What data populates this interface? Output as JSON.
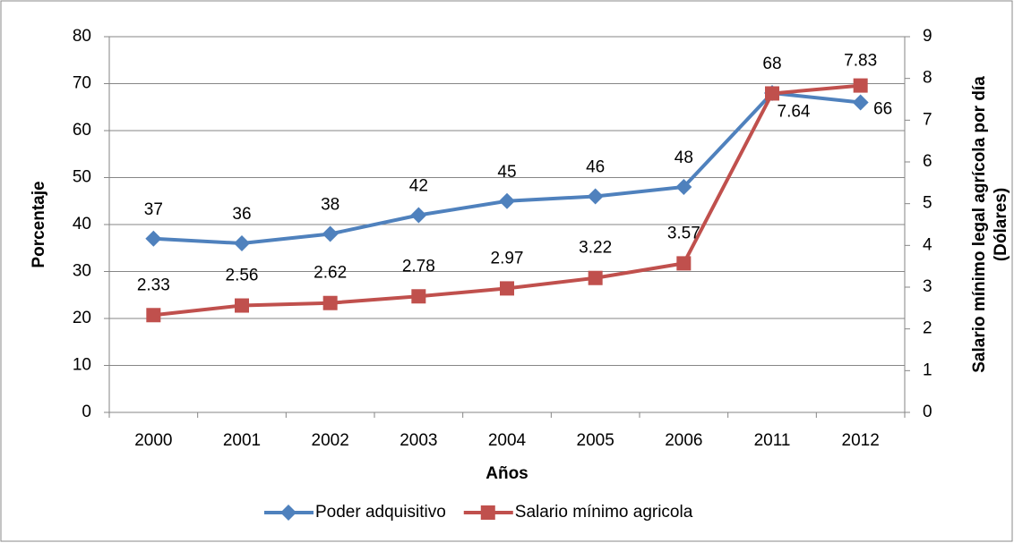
{
  "chart_data": {
    "type": "line",
    "categories": [
      "2000",
      "2001",
      "2002",
      "2003",
      "2004",
      "2005",
      "2006",
      "2011",
      "2012"
    ],
    "xlabel": "Años",
    "ylabel": "Porcentaje",
    "y2label": [
      "Salario mínimo legal agrícola por día",
      "(Dólares)"
    ],
    "ylim": [
      0,
      80
    ],
    "yticks": [
      0,
      10,
      20,
      30,
      40,
      50,
      60,
      70,
      80
    ],
    "y2lim": [
      0,
      9
    ],
    "y2ticks": [
      0,
      1,
      2,
      3,
      4,
      5,
      6,
      7,
      8,
      9
    ],
    "grid": true,
    "legend": "bottom",
    "series": [
      {
        "name": "Poder adquisitivo",
        "color": "#4f81bd",
        "values": [
          37,
          36,
          38,
          42,
          45,
          46,
          48,
          68,
          66
        ]
      },
      {
        "name": "Salario mínimo agricola",
        "color": "#c0504d",
        "axis": "y2",
        "values": [
          2.33,
          2.56,
          2.62,
          2.78,
          2.97,
          3.22,
          3.57,
          7.64,
          7.83
        ]
      }
    ]
  }
}
